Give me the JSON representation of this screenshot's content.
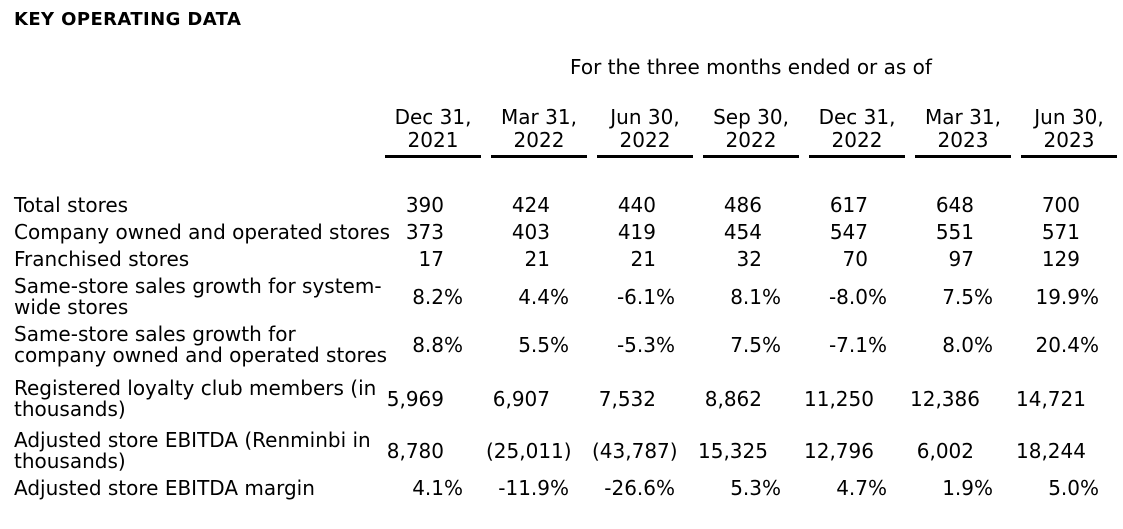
{
  "title": "KEY OPERATING DATA",
  "table": {
    "caption": "For the three months ended or as of",
    "columns": [
      "Dec 31,\n2021",
      "Mar 31,\n2022",
      "Jun 30,\n2022",
      "Sep 30,\n2022",
      "Dec 31,\n2022",
      "Mar 31,\n2023",
      "Jun 30,\n2023"
    ],
    "rows": [
      {
        "label": "Total stores",
        "values": [
          "390",
          "424",
          "440",
          "486",
          "617",
          "648",
          "700"
        ]
      },
      {
        "label": "Company owned and operated stores",
        "values": [
          "373",
          "403",
          "419",
          "454",
          "547",
          "551",
          "571"
        ]
      },
      {
        "label": "Franchised stores",
        "values": [
          "17",
          "21",
          "21",
          "32",
          "70",
          "97",
          "129"
        ]
      },
      {
        "label": "Same-store sales growth for system-\nwide stores",
        "values": [
          "8.2%",
          "4.4%",
          "-6.1%",
          "8.1%",
          "-8.0%",
          "7.5%",
          "19.9%"
        ]
      },
      {
        "label": "Same-store sales growth for\ncompany owned and operated stores",
        "values": [
          "8.8%",
          "5.5%",
          "-5.3%",
          "7.5%",
          "-7.1%",
          "8.0%",
          "20.4%"
        ]
      },
      {
        "label": "Registered loyalty club members (in\nthousands)",
        "values": [
          "5,969",
          "6,907",
          "7,532",
          "8,862",
          "11,250",
          "12,386",
          "14,721"
        ]
      },
      {
        "label": "Adjusted store EBITDA (Renminbi in\nthousands)",
        "values": [
          "8,780",
          "(25,011)",
          "(43,787)",
          "15,325",
          "12,796",
          "6,002",
          "18,244"
        ]
      },
      {
        "label": "Adjusted store EBITDA margin",
        "values": [
          "4.1%",
          "-11.9%",
          "-26.6%",
          "5.3%",
          "4.7%",
          "1.9%",
          "5.0%"
        ]
      }
    ]
  }
}
